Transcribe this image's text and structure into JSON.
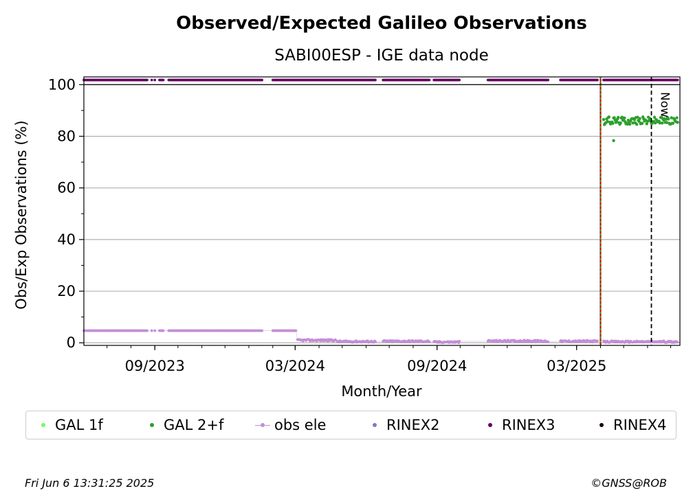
{
  "chart_data": {
    "type": "scatter",
    "title": "Observed/Expected Galileo Observations",
    "subtitle": "SABI00ESP - IGE data node",
    "xlabel": "Month/Year",
    "ylabel": "Obs/Exp Observations (%)",
    "x_range": [
      "2023-06-01",
      "2025-07-13"
    ],
    "ylim": [
      -1,
      103
    ],
    "y_ticks": [
      0,
      20,
      40,
      60,
      80,
      100
    ],
    "x_ticks": [
      {
        "date": "2023-09-01",
        "label": "09/2023"
      },
      {
        "date": "2024-03-01",
        "label": "03/2024"
      },
      {
        "date": "2024-09-01",
        "label": "09/2024"
      },
      {
        "date": "2025-03-01",
        "label": "03/2025"
      }
    ],
    "grid": "y",
    "legend_position": "below",
    "legend": [
      {
        "name": "GAL 1f",
        "color": "#66ff66",
        "marker": "dot"
      },
      {
        "name": "GAL 2+f",
        "color": "#2ca02c",
        "marker": "dot"
      },
      {
        "name": "obs ele",
        "color": "#c38fd6",
        "marker": "line-dot"
      },
      {
        "name": "RINEX2",
        "color": "#8878c3",
        "marker": "dot"
      },
      {
        "name": "RINEX3",
        "color": "#660066",
        "marker": "dot"
      },
      {
        "name": "RINEX4",
        "color": "#1a0010",
        "marker": "dot"
      }
    ],
    "series": [
      {
        "name": "RINEX3",
        "color": "#660066",
        "y": 101.8,
        "segments": [
          [
            "2023-06-01",
            "2023-08-22"
          ],
          [
            "2023-08-28",
            "2023-08-28"
          ],
          [
            "2023-09-01",
            "2023-09-01"
          ],
          [
            "2023-09-07",
            "2023-09-12"
          ],
          [
            "2023-09-19",
            "2024-01-18"
          ],
          [
            "2024-02-01",
            "2024-06-13"
          ],
          [
            "2024-06-23",
            "2024-08-22"
          ],
          [
            "2024-08-28",
            "2024-09-30"
          ],
          [
            "2024-11-06",
            "2025-01-23"
          ],
          [
            "2025-02-08",
            "2025-03-28"
          ],
          [
            "2025-04-05",
            "2025-07-10"
          ]
        ]
      },
      {
        "name": "obs ele",
        "color": "#c38fd6",
        "segments": [
          {
            "range": [
              "2023-06-01",
              "2023-08-22"
            ],
            "y": 4.7
          },
          {
            "range": [
              "2023-08-28",
              "2023-08-28"
            ],
            "y": 4.7
          },
          {
            "range": [
              "2023-09-01",
              "2023-09-01"
            ],
            "y": 4.7
          },
          {
            "range": [
              "2023-09-07",
              "2023-09-12"
            ],
            "y": 4.7
          },
          {
            "range": [
              "2023-09-19",
              "2024-01-18"
            ],
            "y": 4.7
          },
          {
            "range": [
              "2024-02-01",
              "2024-03-02"
            ],
            "y": 4.7
          },
          {
            "range": [
              "2024-03-04",
              "2024-04-22"
            ],
            "y": 1.0
          },
          {
            "range": [
              "2024-04-24",
              "2024-06-13"
            ],
            "y": 0.5
          },
          {
            "range": [
              "2024-06-23",
              "2024-08-22"
            ],
            "y": 0.6
          },
          {
            "range": [
              "2024-08-28",
              "2024-09-30"
            ],
            "y": 0.3
          },
          {
            "range": [
              "2024-11-06",
              "2025-01-23"
            ],
            "y": 0.7
          },
          {
            "range": [
              "2025-02-08",
              "2025-03-28"
            ],
            "y": 0.6
          },
          {
            "range": [
              "2025-04-05",
              "2025-07-10"
            ],
            "y": 0.4
          }
        ]
      },
      {
        "name": "GAL 2+f",
        "color": "#2ca02c",
        "range": [
          "2025-04-05",
          "2025-07-10"
        ],
        "y_mean": 86,
        "outliers": [
          {
            "x": "2025-04-18",
            "y": 78.3
          }
        ]
      }
    ],
    "annotations": [
      {
        "type": "vline",
        "x": "2025-04-01",
        "color": "#cc0000",
        "style": "solid"
      },
      {
        "type": "vline",
        "x": "2025-04-01",
        "color": "#2ca02c",
        "style": "dashed"
      },
      {
        "type": "vline",
        "x": "2025-06-06",
        "color": "#000000",
        "style": "dashed",
        "label": "Now"
      },
      {
        "type": "hline",
        "y": 100,
        "color": "#000000"
      }
    ]
  },
  "footer": {
    "timestamp": "Fri Jun  6 13:31:25 2025",
    "copyright": "©GNSS@ROB"
  }
}
